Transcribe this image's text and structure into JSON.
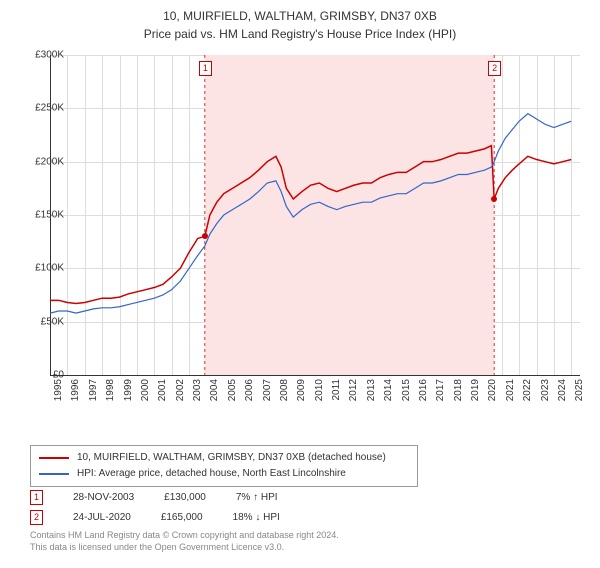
{
  "title": "10, MUIRFIELD, WALTHAM, GRIMSBY, DN37 0XB",
  "subtitle": "Price paid vs. HM Land Registry's House Price Index (HPI)",
  "chart": {
    "type": "line",
    "background_color": "#ffffff",
    "grid_color": "#dddddd",
    "axis_color": "#333333",
    "x_axis": {
      "min": 1995,
      "max": 2025.5,
      "ticks": [
        1995,
        1996,
        1997,
        1998,
        1999,
        2000,
        2001,
        2002,
        2003,
        2004,
        2005,
        2006,
        2007,
        2008,
        2009,
        2010,
        2011,
        2012,
        2013,
        2014,
        2015,
        2016,
        2017,
        2018,
        2019,
        2020,
        2021,
        2022,
        2023,
        2024,
        2025
      ]
    },
    "y_axis": {
      "min": 0,
      "max": 300000,
      "tick_step": 50000,
      "tick_labels": [
        "£0",
        "£50K",
        "£100K",
        "£150K",
        "£200K",
        "£250K",
        "£300K"
      ]
    },
    "band": {
      "start": 2003.91,
      "end": 2020.56,
      "color": "#fde4e4"
    },
    "series": [
      {
        "name": "price_paid",
        "label": "10, MUIRFIELD, WALTHAM, GRIMSBY, DN37 0XB (detached house)",
        "color": "#cc0000",
        "line_width": 1.5,
        "points": [
          [
            1995.0,
            70000
          ],
          [
            1995.5,
            70000
          ],
          [
            1996.0,
            68000
          ],
          [
            1996.5,
            67000
          ],
          [
            1997.0,
            68000
          ],
          [
            1997.5,
            70000
          ],
          [
            1998.0,
            72000
          ],
          [
            1998.5,
            72000
          ],
          [
            1999.0,
            73000
          ],
          [
            1999.5,
            76000
          ],
          [
            2000.0,
            78000
          ],
          [
            2000.5,
            80000
          ],
          [
            2001.0,
            82000
          ],
          [
            2001.5,
            85000
          ],
          [
            2002.0,
            92000
          ],
          [
            2002.5,
            100000
          ],
          [
            2003.0,
            115000
          ],
          [
            2003.5,
            128000
          ],
          [
            2003.91,
            130000
          ],
          [
            2004.2,
            150000
          ],
          [
            2004.6,
            162000
          ],
          [
            2005.0,
            170000
          ],
          [
            2005.5,
            175000
          ],
          [
            2006.0,
            180000
          ],
          [
            2006.5,
            185000
          ],
          [
            2007.0,
            192000
          ],
          [
            2007.5,
            200000
          ],
          [
            2008.0,
            205000
          ],
          [
            2008.3,
            195000
          ],
          [
            2008.6,
            175000
          ],
          [
            2009.0,
            165000
          ],
          [
            2009.5,
            172000
          ],
          [
            2010.0,
            178000
          ],
          [
            2010.5,
            180000
          ],
          [
            2011.0,
            175000
          ],
          [
            2011.5,
            172000
          ],
          [
            2012.0,
            175000
          ],
          [
            2012.5,
            178000
          ],
          [
            2013.0,
            180000
          ],
          [
            2013.5,
            180000
          ],
          [
            2014.0,
            185000
          ],
          [
            2014.5,
            188000
          ],
          [
            2015.0,
            190000
          ],
          [
            2015.5,
            190000
          ],
          [
            2016.0,
            195000
          ],
          [
            2016.5,
            200000
          ],
          [
            2017.0,
            200000
          ],
          [
            2017.5,
            202000
          ],
          [
            2018.0,
            205000
          ],
          [
            2018.5,
            208000
          ],
          [
            2019.0,
            208000
          ],
          [
            2019.5,
            210000
          ],
          [
            2020.0,
            212000
          ],
          [
            2020.4,
            215000
          ],
          [
            2020.56,
            165000
          ],
          [
            2020.8,
            175000
          ],
          [
            2021.2,
            185000
          ],
          [
            2021.6,
            192000
          ],
          [
            2022.0,
            198000
          ],
          [
            2022.5,
            205000
          ],
          [
            2023.0,
            202000
          ],
          [
            2023.5,
            200000
          ],
          [
            2024.0,
            198000
          ],
          [
            2024.5,
            200000
          ],
          [
            2025.0,
            202000
          ]
        ]
      },
      {
        "name": "hpi",
        "label": "HPI: Average price, detached house, North East Lincolnshire",
        "color": "#3366cc",
        "line_width": 1.2,
        "points": [
          [
            1995.0,
            58000
          ],
          [
            1995.5,
            60000
          ],
          [
            1996.0,
            60000
          ],
          [
            1996.5,
            58000
          ],
          [
            1997.0,
            60000
          ],
          [
            1997.5,
            62000
          ],
          [
            1998.0,
            63000
          ],
          [
            1998.5,
            63000
          ],
          [
            1999.0,
            64000
          ],
          [
            1999.5,
            66000
          ],
          [
            2000.0,
            68000
          ],
          [
            2000.5,
            70000
          ],
          [
            2001.0,
            72000
          ],
          [
            2001.5,
            75000
          ],
          [
            2002.0,
            80000
          ],
          [
            2002.5,
            88000
          ],
          [
            2003.0,
            100000
          ],
          [
            2003.5,
            112000
          ],
          [
            2003.91,
            121000
          ],
          [
            2004.2,
            132000
          ],
          [
            2004.6,
            142000
          ],
          [
            2005.0,
            150000
          ],
          [
            2005.5,
            155000
          ],
          [
            2006.0,
            160000
          ],
          [
            2006.5,
            165000
          ],
          [
            2007.0,
            172000
          ],
          [
            2007.5,
            180000
          ],
          [
            2008.0,
            182000
          ],
          [
            2008.3,
            172000
          ],
          [
            2008.6,
            158000
          ],
          [
            2009.0,
            148000
          ],
          [
            2009.5,
            155000
          ],
          [
            2010.0,
            160000
          ],
          [
            2010.5,
            162000
          ],
          [
            2011.0,
            158000
          ],
          [
            2011.5,
            155000
          ],
          [
            2012.0,
            158000
          ],
          [
            2012.5,
            160000
          ],
          [
            2013.0,
            162000
          ],
          [
            2013.5,
            162000
          ],
          [
            2014.0,
            166000
          ],
          [
            2014.5,
            168000
          ],
          [
            2015.0,
            170000
          ],
          [
            2015.5,
            170000
          ],
          [
            2016.0,
            175000
          ],
          [
            2016.5,
            180000
          ],
          [
            2017.0,
            180000
          ],
          [
            2017.5,
            182000
          ],
          [
            2018.0,
            185000
          ],
          [
            2018.5,
            188000
          ],
          [
            2019.0,
            188000
          ],
          [
            2019.5,
            190000
          ],
          [
            2020.0,
            192000
          ],
          [
            2020.4,
            195000
          ],
          [
            2020.56,
            200000
          ],
          [
            2020.8,
            210000
          ],
          [
            2021.2,
            222000
          ],
          [
            2021.6,
            230000
          ],
          [
            2022.0,
            238000
          ],
          [
            2022.5,
            245000
          ],
          [
            2023.0,
            240000
          ],
          [
            2023.5,
            235000
          ],
          [
            2024.0,
            232000
          ],
          [
            2024.5,
            235000
          ],
          [
            2025.0,
            238000
          ]
        ]
      }
    ],
    "markers": [
      {
        "id": "1",
        "label": "1",
        "year": 2003.91,
        "value": 130000,
        "color": "#cc0000"
      },
      {
        "id": "2",
        "label": "2",
        "year": 2020.56,
        "value": 165000,
        "color": "#cc0000"
      }
    ]
  },
  "legend": {
    "row1": "10, MUIRFIELD, WALTHAM, GRIMSBY, DN37 0XB (detached house)",
    "row2": "HPI: Average price, detached house, North East Lincolnshire"
  },
  "sales": [
    {
      "marker": "1",
      "date": "28-NOV-2003",
      "price": "£130,000",
      "delta": "7% ↑ HPI"
    },
    {
      "marker": "2",
      "date": "24-JUL-2020",
      "price": "£165,000",
      "delta": "18% ↓ HPI"
    }
  ],
  "footer": {
    "line1": "Contains HM Land Registry data © Crown copyright and database right 2024.",
    "line2": "This data is licensed under the Open Government Licence v3.0."
  },
  "colors": {
    "red": "#cc0000",
    "blue": "#3366cc",
    "band": "#fde4e4",
    "grid": "#dddddd",
    "text": "#333333",
    "footer": "#888888"
  }
}
